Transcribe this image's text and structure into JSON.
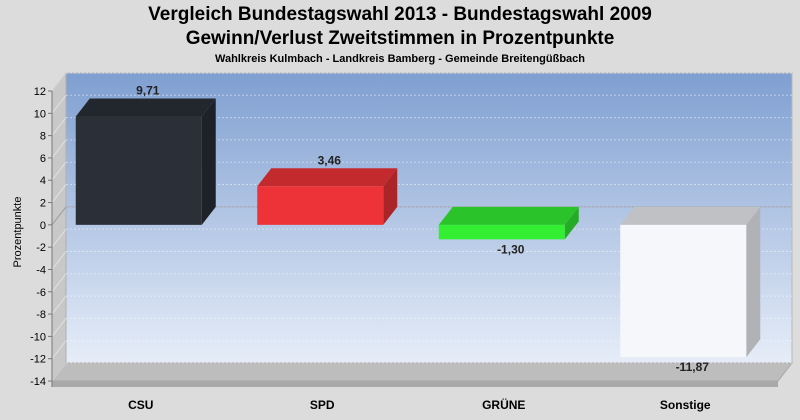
{
  "chart_data": {
    "type": "bar",
    "title": "Vergleich Bundestagswahl 2013 - Bundestagswahl 2009",
    "subtitle": "Gewinn/Verlust Zweitstimmen in Prozentpunkte",
    "subtitle2": "Wahlkreis Kulmbach - Landkreis Bamberg - Gemeinde Breitengüßbach",
    "ylabel": "Prozentpunkte",
    "xlabel": "",
    "ylim": [
      -14,
      12
    ],
    "yticks": [
      12,
      10,
      8,
      6,
      4,
      2,
      0,
      -2,
      -4,
      -6,
      -8,
      -10,
      -12,
      -14
    ],
    "categories": [
      "CSU",
      "SPD",
      "GRÜNE",
      "Sonstige"
    ],
    "values": [
      9.71,
      3.46,
      -1.3,
      -11.87
    ],
    "labels": [
      "9,71",
      "3,46",
      "-1,30",
      "-11,87"
    ],
    "colors": [
      "#2a2f38",
      "#ee3338",
      "#33ee33",
      "#f6f7fb"
    ],
    "grid": true,
    "legend": "none"
  }
}
